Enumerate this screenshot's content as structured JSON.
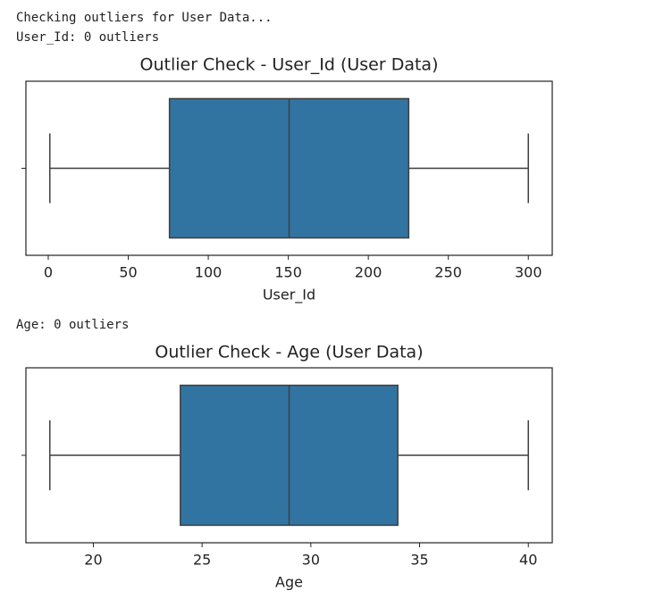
{
  "log": [
    "Checking outliers for User Data...",
    "User_Id: 0 outliers",
    "Age: 0 outliers"
  ],
  "chart_data": [
    {
      "type": "box",
      "title": "Outlier Check - User_Id (User Data)",
      "xlabel": "User_Id",
      "xlim": [
        -13.95,
        314.95
      ],
      "xticks": [
        0,
        50,
        100,
        150,
        200,
        250,
        300
      ],
      "box": {
        "whislo": 1,
        "q1": 75.75,
        "med": 150.5,
        "q3": 225.25,
        "whishi": 300
      },
      "color": "#3274a1"
    },
    {
      "type": "box",
      "title": "Outlier Check - Age (User Data)",
      "xlabel": "Age",
      "xlim": [
        16.9,
        41.1
      ],
      "xticks": [
        20,
        25,
        30,
        35,
        40
      ],
      "box": {
        "whislo": 18,
        "q1": 24,
        "med": 29,
        "q3": 34,
        "whishi": 40
      },
      "color": "#3274a1"
    }
  ]
}
